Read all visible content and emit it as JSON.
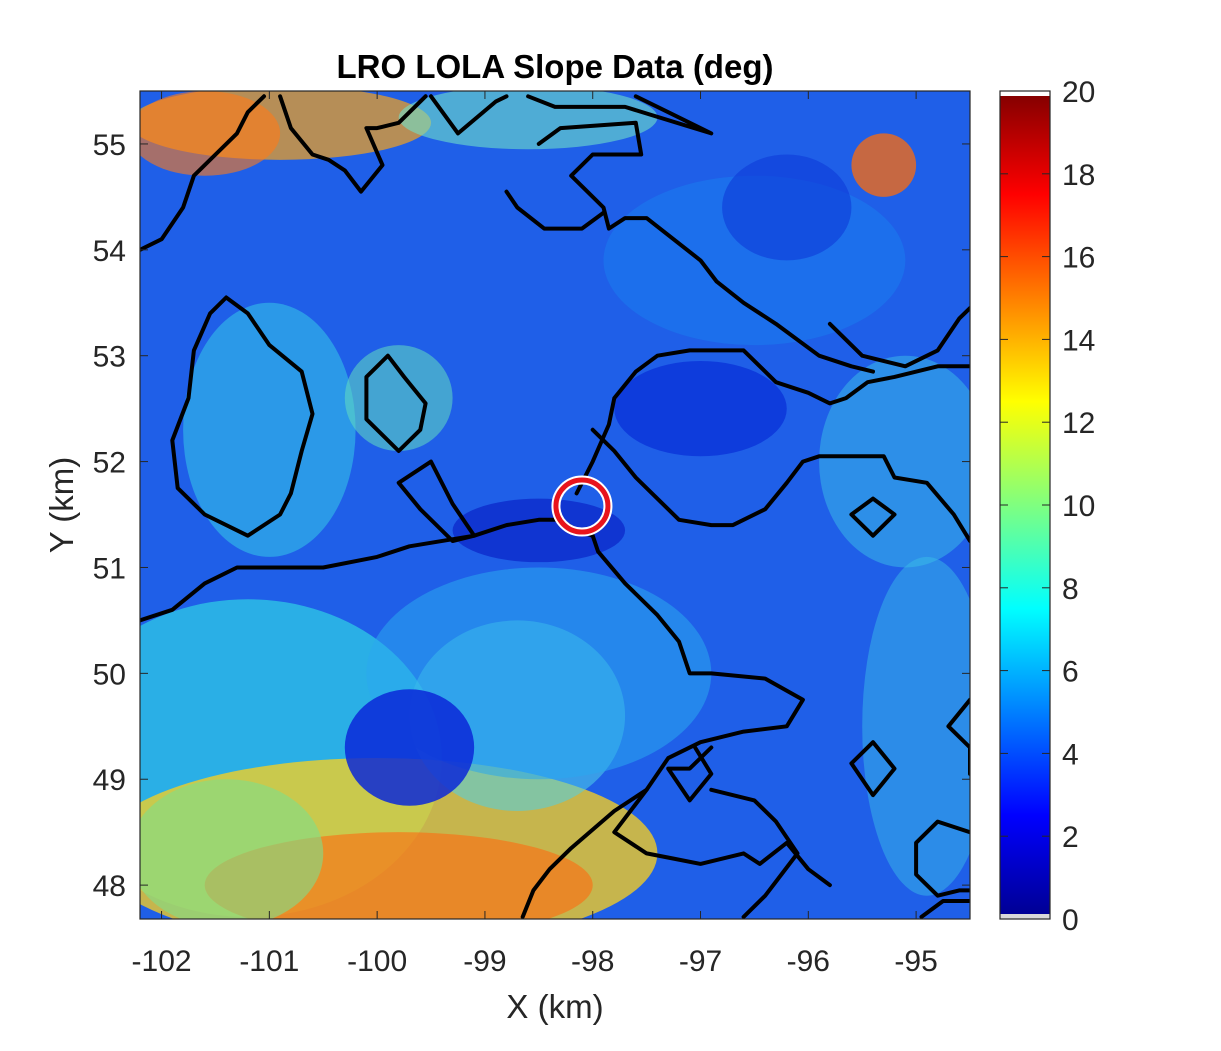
{
  "chart_data": {
    "type": "heatmap",
    "title": "LRO LOLA Slope Data (deg)",
    "xlabel": "X (km)",
    "ylabel": "Y (km)",
    "xlim": [
      -102.2,
      -94.5
    ],
    "ylim": [
      47.68,
      55.5
    ],
    "x_ticks": [
      -102,
      -101,
      -100,
      -99,
      -98,
      -97,
      -96,
      -95
    ],
    "x_tick_labels": [
      "-102",
      "-101",
      "-100",
      "-99",
      "-98",
      "-97",
      "-96",
      "-95"
    ],
    "y_ticks": [
      48,
      49,
      50,
      51,
      52,
      53,
      54,
      55
    ],
    "y_tick_labels": [
      "48",
      "49",
      "50",
      "51",
      "52",
      "53",
      "54",
      "55"
    ],
    "colorbar": {
      "colormap": "jet",
      "range": [
        0,
        20
      ],
      "ticks": [
        0,
        2,
        4,
        6,
        8,
        10,
        12,
        14,
        16,
        18,
        20
      ],
      "tick_labels": [
        "0",
        "2",
        "4",
        "6",
        "8",
        "10",
        "12",
        "14",
        "16",
        "18",
        "20"
      ]
    },
    "marker": {
      "shape": "circle",
      "x": -98.1,
      "y": 51.58,
      "color": "#e8141c"
    },
    "contour_color": "#000000",
    "contours": [
      [
        [
          -102.2,
          54.0
        ],
        [
          -102.0,
          54.1
        ],
        [
          -101.8,
          54.4
        ],
        [
          -101.7,
          54.7
        ],
        [
          -101.5,
          54.9
        ],
        [
          -101.3,
          55.1
        ],
        [
          -101.2,
          55.3
        ],
        [
          -101.05,
          55.45
        ]
      ],
      [
        [
          -100.9,
          55.45
        ],
        [
          -100.8,
          55.15
        ],
        [
          -100.6,
          54.9
        ],
        [
          -100.45,
          54.85
        ],
        [
          -100.3,
          54.75
        ],
        [
          -100.15,
          54.55
        ],
        [
          -99.95,
          54.8
        ],
        [
          -100.1,
          55.15
        ],
        [
          -100.0,
          55.15
        ],
        [
          -99.8,
          55.2
        ],
        [
          -99.55,
          55.45
        ]
      ],
      [
        [
          -99.5,
          55.45
        ],
        [
          -99.25,
          55.1
        ],
        [
          -98.9,
          55.4
        ],
        [
          -98.8,
          55.45
        ]
      ],
      [
        [
          -98.6,
          55.45
        ],
        [
          -98.35,
          55.35
        ],
        [
          -97.7,
          55.35
        ],
        [
          -96.9,
          55.1
        ],
        [
          -97.3,
          55.3
        ],
        [
          -97.6,
          55.45
        ]
      ],
      [
        [
          -98.5,
          55.0
        ],
        [
          -98.3,
          55.15
        ],
        [
          -97.6,
          55.2
        ],
        [
          -97.55,
          54.9
        ],
        [
          -98.0,
          54.9
        ],
        [
          -98.2,
          54.7
        ],
        [
          -97.9,
          54.4
        ],
        [
          -97.85,
          54.2
        ],
        [
          -97.7,
          54.3
        ],
        [
          -97.5,
          54.3
        ],
        [
          -97.0,
          53.9
        ],
        [
          -96.85,
          53.7
        ],
        [
          -96.6,
          53.5
        ],
        [
          -96.3,
          53.3
        ],
        [
          -95.9,
          53.0
        ],
        [
          -95.6,
          52.9
        ],
        [
          -95.4,
          52.85
        ]
      ],
      [
        [
          -98.8,
          54.55
        ],
        [
          -98.7,
          54.4
        ],
        [
          -98.45,
          54.2
        ],
        [
          -98.1,
          54.2
        ],
        [
          -97.9,
          54.35
        ]
      ],
      [
        [
          -95.8,
          53.3
        ],
        [
          -95.5,
          53.0
        ],
        [
          -95.1,
          52.9
        ],
        [
          -94.8,
          53.05
        ],
        [
          -94.6,
          53.35
        ],
        [
          -94.5,
          53.45
        ]
      ],
      [
        [
          -101.4,
          53.55
        ],
        [
          -101.55,
          53.4
        ],
        [
          -101.7,
          53.05
        ],
        [
          -101.75,
          52.6
        ],
        [
          -101.9,
          52.2
        ],
        [
          -101.85,
          51.75
        ],
        [
          -101.6,
          51.5
        ],
        [
          -101.2,
          51.3
        ],
        [
          -100.9,
          51.5
        ],
        [
          -100.8,
          51.7
        ],
        [
          -100.7,
          52.1
        ],
        [
          -100.6,
          52.45
        ],
        [
          -100.7,
          52.85
        ],
        [
          -101.0,
          53.1
        ],
        [
          -101.2,
          53.4
        ],
        [
          -101.4,
          53.55
        ]
      ],
      [
        [
          -99.9,
          53.0
        ],
        [
          -100.1,
          52.8
        ],
        [
          -100.1,
          52.4
        ],
        [
          -99.8,
          52.1
        ],
        [
          -99.6,
          52.3
        ],
        [
          -99.55,
          52.55
        ],
        [
          -99.75,
          52.8
        ],
        [
          -99.9,
          53.0
        ]
      ],
      [
        [
          -99.5,
          52.0
        ],
        [
          -99.8,
          51.8
        ],
        [
          -99.6,
          51.55
        ],
        [
          -99.3,
          51.25
        ],
        [
          -99.1,
          51.3
        ],
        [
          -99.3,
          51.6
        ],
        [
          -99.5,
          52.0
        ]
      ],
      [
        [
          -102.2,
          50.5
        ],
        [
          -101.9,
          50.6
        ],
        [
          -101.6,
          50.85
        ],
        [
          -101.3,
          51.0
        ],
        [
          -100.5,
          51.0
        ],
        [
          -100.0,
          51.1
        ],
        [
          -99.7,
          51.2
        ],
        [
          -99.1,
          51.3
        ],
        [
          -98.8,
          51.4
        ],
        [
          -98.5,
          51.45
        ],
        [
          -98.3,
          51.45
        ],
        [
          -98.15,
          51.35
        ],
        [
          -98.0,
          51.3
        ],
        [
          -97.95,
          51.15
        ],
        [
          -97.7,
          50.85
        ],
        [
          -97.4,
          50.55
        ],
        [
          -97.2,
          50.3
        ],
        [
          -97.1,
          50.0
        ],
        [
          -96.9,
          50.0
        ],
        [
          -96.4,
          49.95
        ],
        [
          -96.05,
          49.75
        ],
        [
          -96.2,
          49.5
        ],
        [
          -96.6,
          49.45
        ],
        [
          -97.0,
          49.35
        ],
        [
          -97.3,
          49.2
        ],
        [
          -97.5,
          48.9
        ],
        [
          -97.8,
          48.7
        ],
        [
          -98.2,
          48.35
        ],
        [
          -98.4,
          48.15
        ],
        [
          -98.55,
          47.95
        ],
        [
          -98.65,
          47.7
        ]
      ],
      [
        [
          -98.15,
          51.7
        ],
        [
          -98.0,
          52.0
        ],
        [
          -97.85,
          52.35
        ],
        [
          -97.8,
          52.6
        ],
        [
          -97.6,
          52.85
        ],
        [
          -97.4,
          53.0
        ],
        [
          -97.1,
          53.05
        ],
        [
          -96.6,
          53.05
        ],
        [
          -96.3,
          52.75
        ],
        [
          -96.0,
          52.65
        ],
        [
          -95.8,
          52.55
        ],
        [
          -95.65,
          52.6
        ],
        [
          -95.45,
          52.75
        ],
        [
          -95.2,
          52.8
        ],
        [
          -94.8,
          52.9
        ],
        [
          -94.5,
          52.9
        ]
      ],
      [
        [
          -98.0,
          52.3
        ],
        [
          -97.8,
          52.1
        ],
        [
          -97.6,
          51.85
        ],
        [
          -97.2,
          51.45
        ],
        [
          -96.9,
          51.4
        ],
        [
          -96.7,
          51.4
        ],
        [
          -96.4,
          51.55
        ],
        [
          -96.2,
          51.8
        ],
        [
          -96.05,
          52.0
        ],
        [
          -95.9,
          52.05
        ],
        [
          -95.3,
          52.05
        ],
        [
          -95.2,
          51.85
        ],
        [
          -94.9,
          51.8
        ],
        [
          -94.65,
          51.5
        ],
        [
          -94.5,
          51.25
        ]
      ],
      [
        [
          -95.6,
          51.5
        ],
        [
          -95.4,
          51.65
        ],
        [
          -95.2,
          51.5
        ],
        [
          -95.4,
          51.3
        ],
        [
          -95.6,
          51.5
        ]
      ],
      [
        [
          -96.9,
          49.3
        ],
        [
          -97.1,
          49.1
        ],
        [
          -97.3,
          49.1
        ],
        [
          -97.1,
          48.8
        ],
        [
          -96.9,
          49.05
        ],
        [
          -97.05,
          49.3
        ]
      ],
      [
        [
          -95.6,
          49.15
        ],
        [
          -95.4,
          49.35
        ],
        [
          -95.2,
          49.1
        ],
        [
          -95.4,
          48.85
        ],
        [
          -95.6,
          49.15
        ]
      ],
      [
        [
          -94.5,
          49.75
        ],
        [
          -94.7,
          49.5
        ],
        [
          -94.5,
          49.3
        ],
        [
          -94.5,
          49.05
        ]
      ],
      [
        [
          -94.5,
          48.5
        ],
        [
          -94.8,
          48.6
        ],
        [
          -95.0,
          48.4
        ],
        [
          -95.0,
          48.1
        ],
        [
          -94.8,
          47.9
        ],
        [
          -94.6,
          47.95
        ],
        [
          -94.5,
          47.95
        ]
      ],
      [
        [
          -97.5,
          48.9
        ],
        [
          -97.8,
          48.5
        ],
        [
          -97.5,
          48.3
        ],
        [
          -97.25,
          48.25
        ],
        [
          -97.0,
          48.2
        ],
        [
          -96.6,
          48.3
        ],
        [
          -96.45,
          48.2
        ],
        [
          -96.2,
          48.4
        ],
        [
          -96.0,
          48.15
        ],
        [
          -95.8,
          48.0
        ]
      ],
      [
        [
          -96.9,
          48.9
        ],
        [
          -96.5,
          48.8
        ],
        [
          -96.3,
          48.6
        ],
        [
          -96.1,
          48.3
        ],
        [
          -96.4,
          47.9
        ],
        [
          -96.6,
          47.7
        ]
      ],
      [
        [
          -94.5,
          47.85
        ],
        [
          -94.75,
          47.85
        ],
        [
          -94.95,
          47.7
        ]
      ]
    ],
    "grid": false
  }
}
